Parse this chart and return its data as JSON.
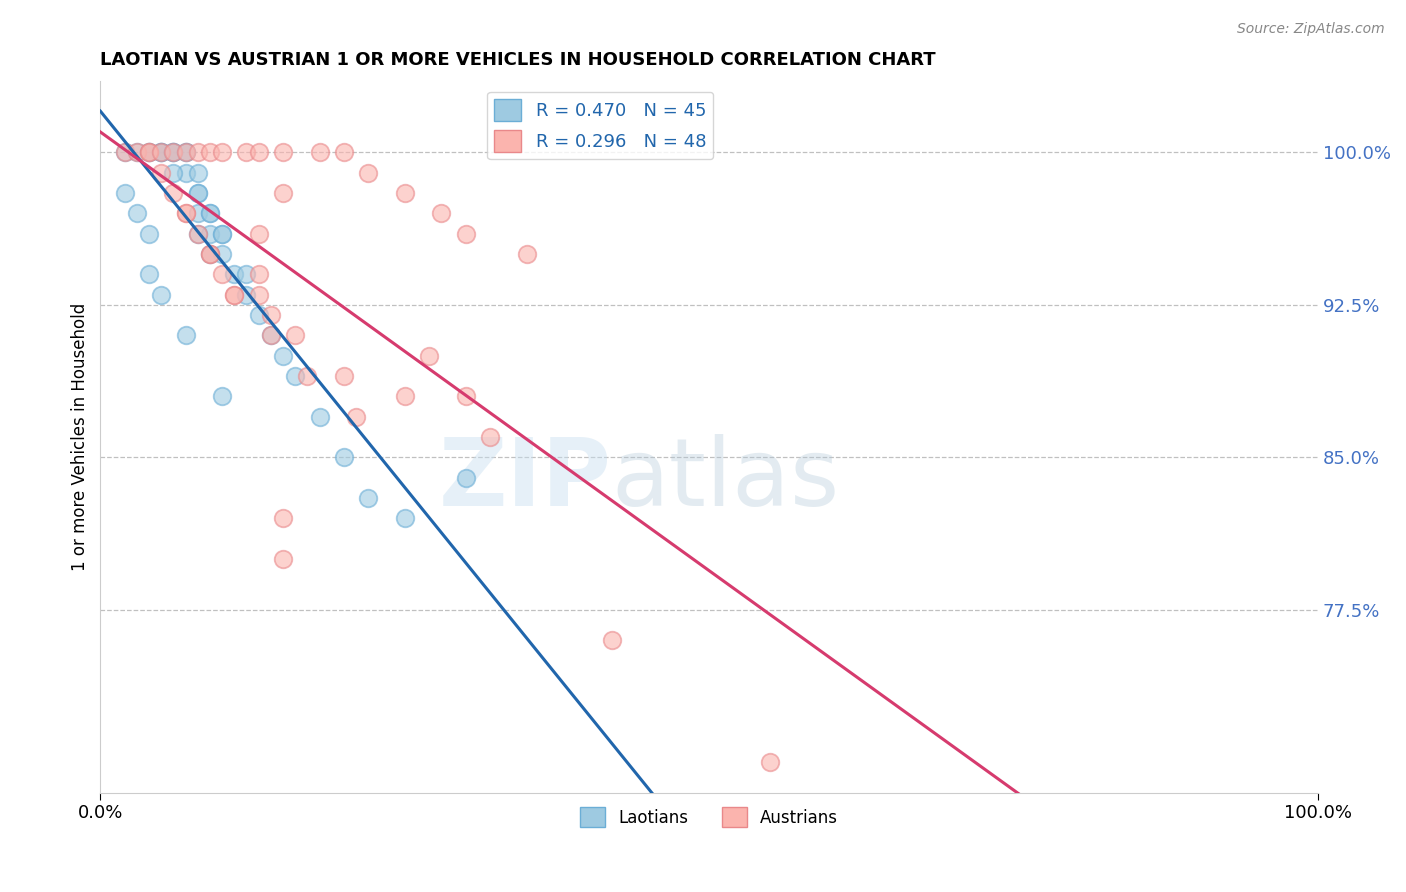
{
  "title_display": "LAOTIAN VS AUSTRIAN 1 OR MORE VEHICLES IN HOUSEHOLD CORRELATION CHART",
  "ylabel": "1 or more Vehicles in Household",
  "source_text": "Source: ZipAtlas.com",
  "ytick_labels": [
    "100.0%",
    "92.5%",
    "85.0%",
    "77.5%"
  ],
  "ytick_values": [
    1.0,
    0.925,
    0.85,
    0.775
  ],
  "xmin": 0.0,
  "xmax": 100.0,
  "ymin": 0.685,
  "ymax": 1.035,
  "laotian_color": "#9ecae1",
  "laotian_edge_color": "#6baed6",
  "austrian_color": "#fbb4ae",
  "austrian_edge_color": "#e9888a",
  "laotian_line_color": "#2166ac",
  "austrian_line_color": "#d63b6e",
  "laotian_R": 0.47,
  "laotian_N": 45,
  "austrian_R": 0.296,
  "austrian_N": 48,
  "watermark_zip": "ZIP",
  "watermark_atlas": "atlas",
  "laotian_scatter_x": [
    2,
    3,
    4,
    4,
    5,
    5,
    5,
    6,
    6,
    6,
    7,
    7,
    7,
    8,
    8,
    8,
    9,
    9,
    9,
    10,
    10,
    10,
    11,
    12,
    12,
    13,
    14,
    15,
    16,
    18,
    20,
    22,
    25,
    6,
    8,
    8,
    9,
    2,
    3,
    4,
    4,
    5,
    7,
    10,
    30
  ],
  "laotian_scatter_y": [
    1.0,
    1.0,
    1.0,
    1.0,
    1.0,
    1.0,
    1.0,
    1.0,
    1.0,
    1.0,
    1.0,
    1.0,
    0.99,
    0.99,
    0.98,
    0.97,
    0.97,
    0.96,
    0.97,
    0.96,
    0.96,
    0.95,
    0.94,
    0.94,
    0.93,
    0.92,
    0.91,
    0.9,
    0.89,
    0.87,
    0.85,
    0.83,
    0.82,
    0.99,
    0.98,
    0.96,
    0.95,
    0.98,
    0.97,
    0.96,
    0.94,
    0.93,
    0.91,
    0.88,
    0.84
  ],
  "austrian_scatter_x": [
    2,
    3,
    4,
    4,
    5,
    6,
    7,
    8,
    9,
    10,
    12,
    13,
    15,
    18,
    20,
    22,
    25,
    28,
    30,
    35,
    5,
    6,
    7,
    8,
    9,
    10,
    11,
    14,
    16,
    20,
    25,
    32,
    7,
    9,
    11,
    14,
    17,
    21,
    13,
    13,
    27,
    15,
    15,
    15,
    55,
    13,
    30,
    42
  ],
  "austrian_scatter_y": [
    1.0,
    1.0,
    1.0,
    1.0,
    1.0,
    1.0,
    1.0,
    1.0,
    1.0,
    1.0,
    1.0,
    1.0,
    1.0,
    1.0,
    1.0,
    0.99,
    0.98,
    0.97,
    0.96,
    0.95,
    0.99,
    0.98,
    0.97,
    0.96,
    0.95,
    0.94,
    0.93,
    0.92,
    0.91,
    0.89,
    0.88,
    0.86,
    0.97,
    0.95,
    0.93,
    0.91,
    0.89,
    0.87,
    0.96,
    0.94,
    0.9,
    0.98,
    0.8,
    0.82,
    0.7,
    0.93,
    0.88,
    0.76
  ]
}
